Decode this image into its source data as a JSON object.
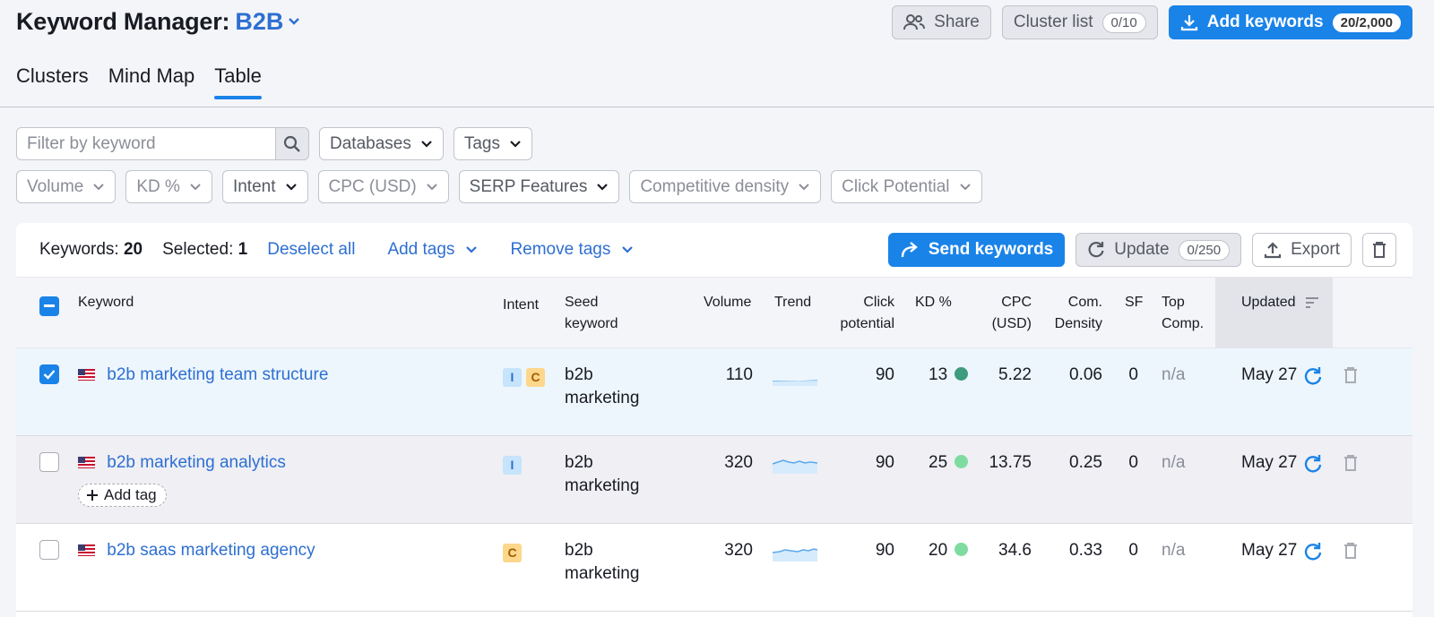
{
  "header": {
    "title": "Keyword Manager:",
    "project": "B2B"
  },
  "top_actions": {
    "share": "Share",
    "cluster_list": "Cluster list",
    "cluster_count": "0/10",
    "add_keywords": "Add keywords",
    "add_count": "20/2,000"
  },
  "tabs": [
    "Clusters",
    "Mind Map",
    "Table"
  ],
  "filters": {
    "search_placeholder": "Filter by keyword",
    "databases": "Databases",
    "tags": "Tags",
    "volume": "Volume",
    "kd": "KD %",
    "intent": "Intent",
    "cpc": "CPC (USD)",
    "serp": "SERP Features",
    "comp_density": "Competitive density",
    "click_potential": "Click Potential"
  },
  "toolbar": {
    "keywords_label": "Keywords:",
    "keywords_count": "20",
    "selected_label": "Selected:",
    "selected_count": "1",
    "deselect": "Deselect all",
    "add_tags": "Add tags",
    "remove_tags": "Remove tags",
    "send": "Send keywords",
    "update": "Update",
    "update_count": "0/250",
    "export": "Export"
  },
  "columns": {
    "keyword": "Keyword",
    "intent": "Intent",
    "seed_1": "Seed",
    "seed_2": "keyword",
    "volume": "Volume",
    "trend": "Trend",
    "click_1": "Click",
    "click_2": "potential",
    "kd": "KD %",
    "cpc_1": "CPC",
    "cpc_2": "(USD)",
    "com_1": "Com.",
    "com_2": "Density",
    "sf": "SF",
    "top_1": "Top",
    "top_2": "Comp.",
    "updated": "Updated"
  },
  "rows": [
    {
      "keyword": "b2b marketing team structure",
      "seed_1": "b2b",
      "seed_2": "marketing",
      "volume": "110",
      "click": "90",
      "kd": "13",
      "kd_color": "#3d9b7e",
      "cpc": "5.22",
      "density": "0.06",
      "sf": "0",
      "top": "n/a",
      "updated": "May 27"
    },
    {
      "keyword": "b2b marketing analytics",
      "seed_1": "b2b",
      "seed_2": "marketing",
      "volume": "320",
      "click": "90",
      "kd": "25",
      "kd_color": "#7fdca0",
      "cpc": "13.75",
      "density": "0.25",
      "sf": "0",
      "top": "n/a",
      "updated": "May 27",
      "add_tag": "Add tag"
    },
    {
      "keyword": "b2b saas marketing agency",
      "seed_1": "b2b",
      "seed_2": "marketing",
      "volume": "320",
      "click": "90",
      "kd": "20",
      "kd_color": "#7fdca0",
      "cpc": "34.6",
      "density": "0.33",
      "sf": "0",
      "top": "n/a",
      "updated": "May 27"
    }
  ],
  "intent_labels": {
    "i": "I",
    "c": "C"
  }
}
